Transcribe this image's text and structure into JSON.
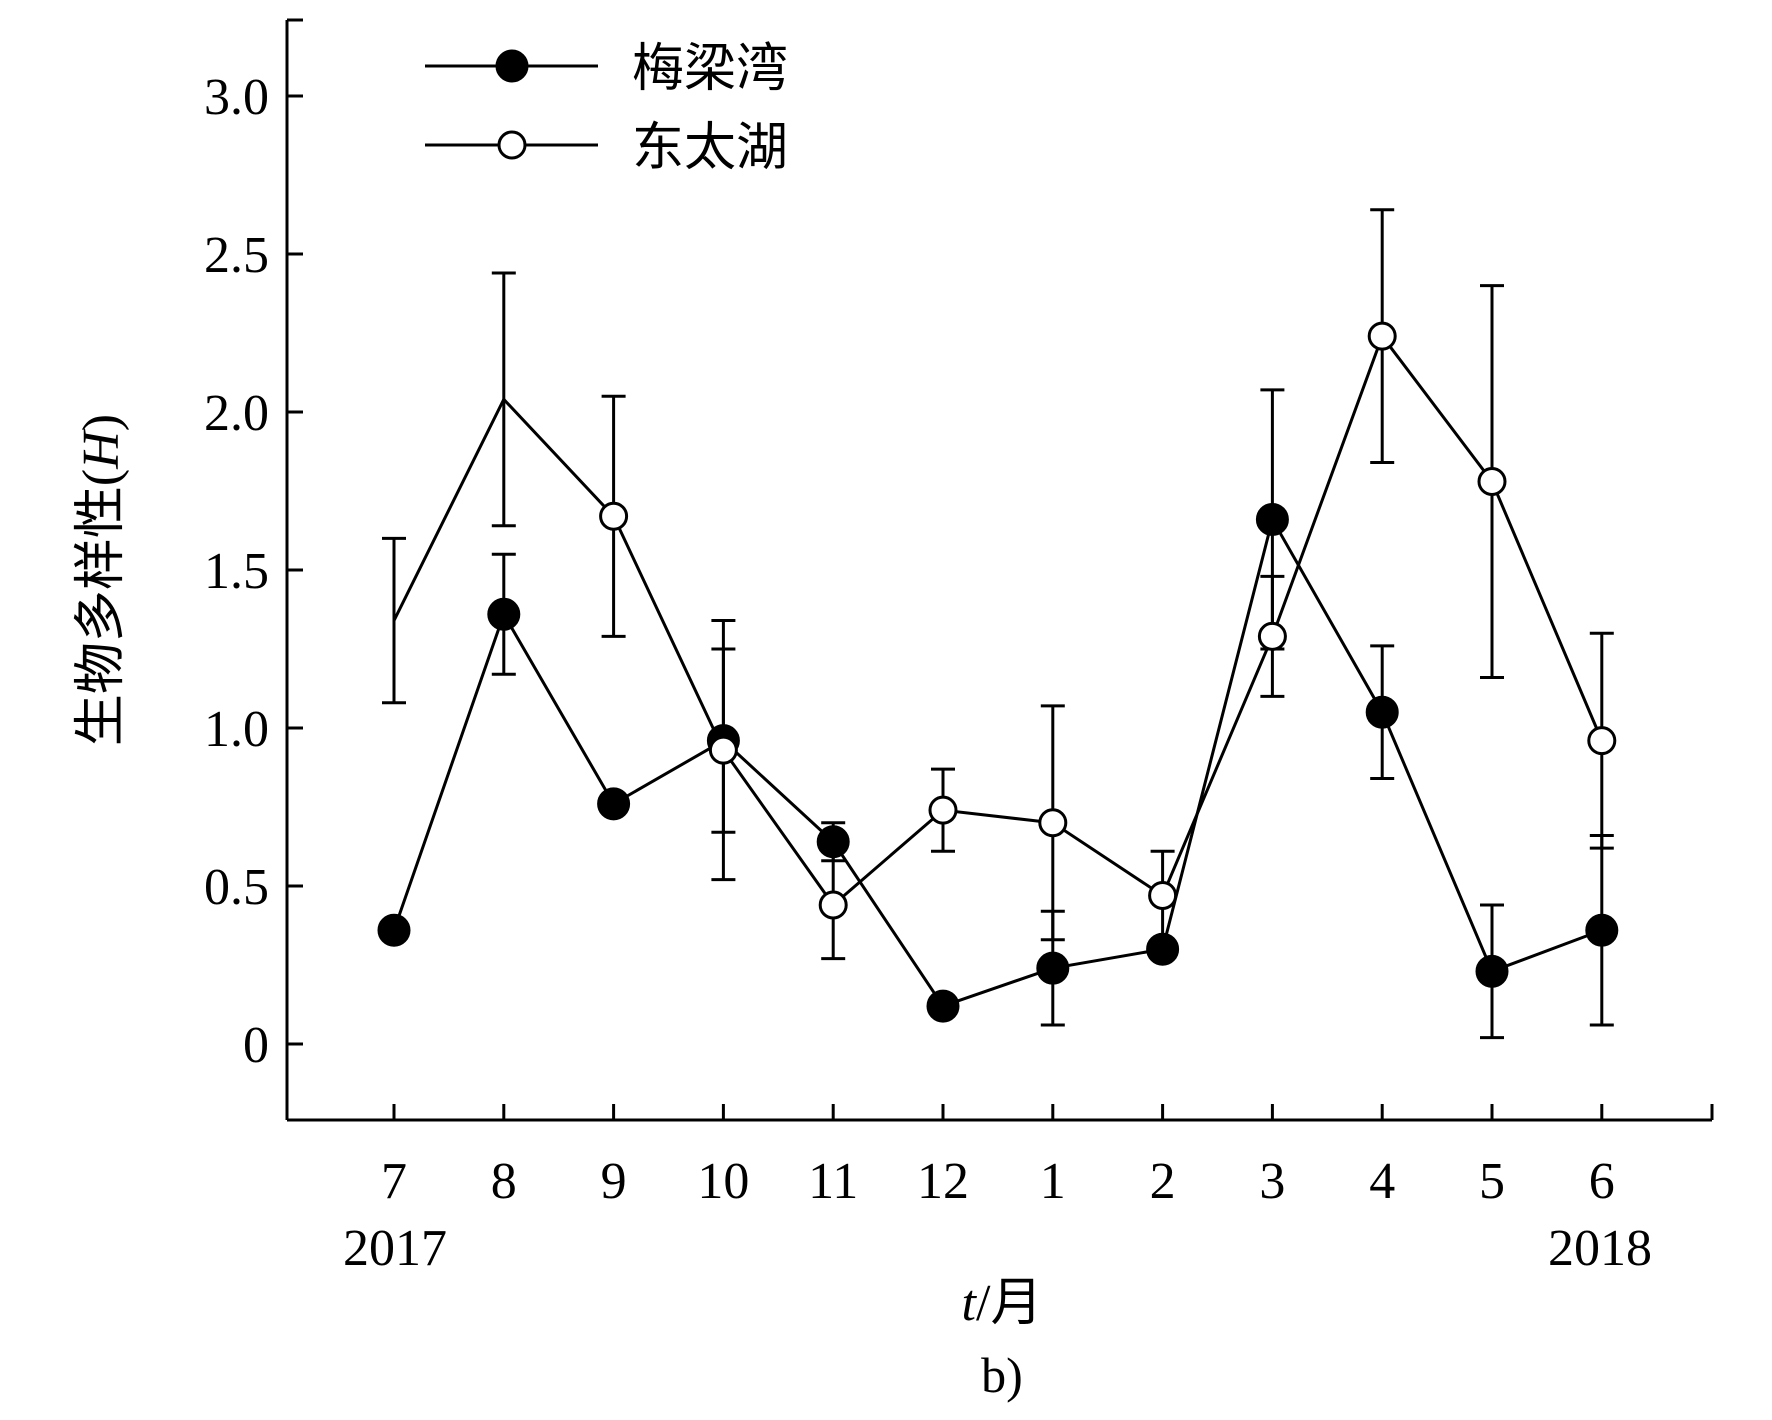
{
  "chart_data": {
    "type": "line",
    "xlabel": {
      "var": "t",
      "unit": "/月"
    },
    "ylabel": {
      "prefix": "生物多样性(",
      "var": "H",
      "suffix": ")"
    },
    "categories": [
      "7",
      "8",
      "9",
      "10",
      "11",
      "12",
      "1",
      "2",
      "3",
      "4",
      "5",
      "6"
    ],
    "year_labels": {
      "start": "2017",
      "end": "2018"
    },
    "panel_label": "b)",
    "ylim": [
      -0.25,
      3.25
    ],
    "yticks": [
      0,
      0.5,
      1.0,
      1.5,
      2.0,
      2.5,
      3.0
    ],
    "ytick_labels": [
      "0",
      "0.5",
      "1.0",
      "1.5",
      "2.0",
      "2.5",
      "3.0"
    ],
    "legend_position": "top-left",
    "series": [
      {
        "name": "梅梁湾",
        "marker": "filled-circle",
        "values": [
          0.36,
          1.36,
          0.76,
          0.96,
          0.64,
          0.12,
          0.24,
          0.3,
          1.66,
          1.05,
          0.23,
          0.36
        ],
        "errors": [
          null,
          0.19,
          null,
          0.29,
          0.06,
          null,
          0.18,
          null,
          0.41,
          0.21,
          0.21,
          0.3
        ],
        "marker_shown": [
          true,
          true,
          true,
          true,
          true,
          true,
          true,
          true,
          true,
          true,
          true,
          true
        ]
      },
      {
        "name": "东太湖",
        "marker": "open-circle",
        "values": [
          1.34,
          2.04,
          1.67,
          0.93,
          0.44,
          0.74,
          0.7,
          0.47,
          1.29,
          2.24,
          1.78,
          0.96
        ],
        "errors": [
          0.26,
          0.4,
          0.38,
          0.41,
          0.17,
          0.13,
          0.37,
          0.14,
          0.19,
          0.4,
          0.62,
          0.34
        ],
        "marker_shown": [
          false,
          false,
          true,
          true,
          true,
          true,
          true,
          true,
          true,
          true,
          true,
          true
        ]
      }
    ],
    "colors": {
      "line": "#000000",
      "open_fill": "#ffffff"
    }
  }
}
